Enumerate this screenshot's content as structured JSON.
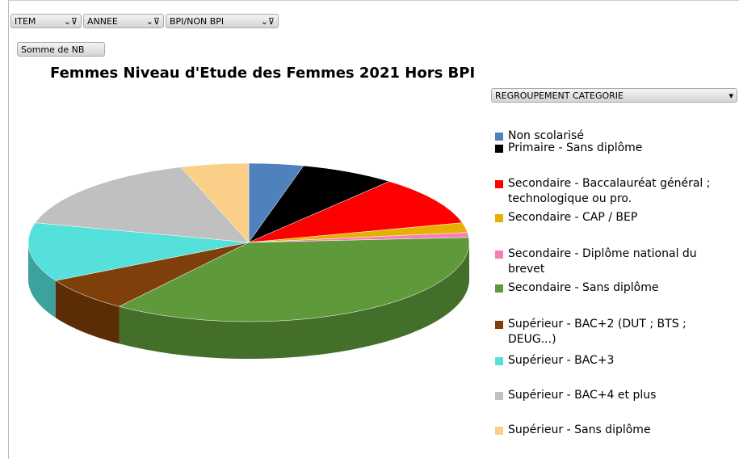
{
  "filters": [
    "ITEM",
    "ANNEE",
    "BPI/NON BPI"
  ],
  "value_field": "Somme de NB",
  "legend_field": "REGROUPEMENT CATEGORIE",
  "chart_data": {
    "type": "pie",
    "title": "Femmes Niveau d'Etude des Femmes 2021 Hors BPI",
    "categories": [
      "Non scolarisé",
      "Primaire - Sans diplôme",
      "Secondaire - Baccalauréat général ; technologique ou pro.",
      "Secondaire - CAP / BEP",
      "Secondaire - Diplôme national du brevet",
      "Secondaire - Sans diplôme",
      "Supérieur - BAC+2 (DUT ; BTS ; DEUG...)",
      "Supérieur - BAC+3",
      "Supérieur - BAC+4 et plus",
      "Supérieur - Sans diplôme"
    ],
    "values": [
      4,
      7,
      10,
      2,
      1,
      36,
      7,
      12,
      16,
      5
    ],
    "colors": [
      "#4f81bd",
      "#000000",
      "#ff0000",
      "#e6b000",
      "#f47fb4",
      "#5e9a3a",
      "#7f3f0a",
      "#55e0dc",
      "#c0c0c0",
      "#fad088"
    ],
    "legend": "right"
  }
}
